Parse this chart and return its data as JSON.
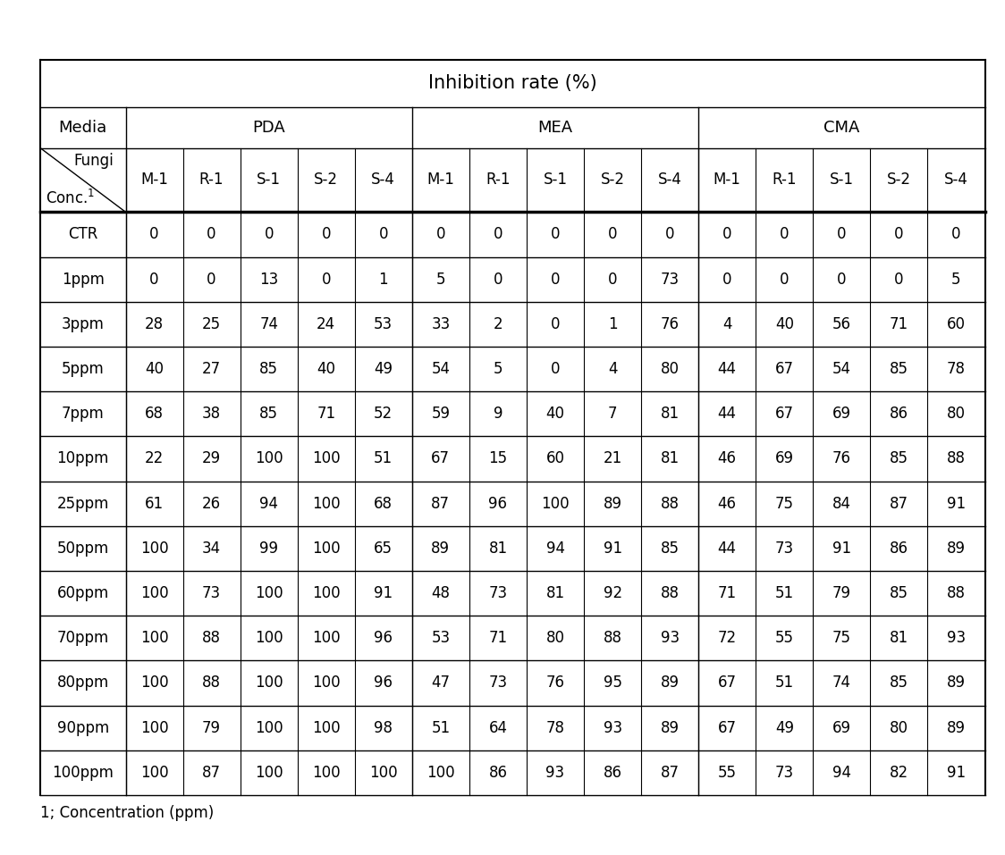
{
  "title": "Inhibition rate (%)",
  "fungi_labels": [
    "M-1",
    "R-1",
    "S-1",
    "S-2",
    "S-4",
    "M-1",
    "R-1",
    "S-1",
    "S-2",
    "S-4",
    "M-1",
    "R-1",
    "S-1",
    "S-2",
    "S-4"
  ],
  "row_labels": [
    "CTR",
    "1ppm",
    "3ppm",
    "5ppm",
    "7ppm",
    "10ppm",
    "25ppm",
    "50ppm",
    "60ppm",
    "70ppm",
    "80ppm",
    "90ppm",
    "100ppm"
  ],
  "data": [
    [
      0,
      0,
      0,
      0,
      0,
      0,
      0,
      0,
      0,
      0,
      0,
      0,
      0,
      0,
      0
    ],
    [
      0,
      0,
      13,
      0,
      1,
      5,
      0,
      0,
      0,
      73,
      0,
      0,
      0,
      0,
      5
    ],
    [
      28,
      25,
      74,
      24,
      53,
      33,
      2,
      0,
      1,
      76,
      4,
      40,
      56,
      71,
      60
    ],
    [
      40,
      27,
      85,
      40,
      49,
      54,
      5,
      0,
      4,
      80,
      44,
      67,
      54,
      85,
      78
    ],
    [
      68,
      38,
      85,
      71,
      52,
      59,
      9,
      40,
      7,
      81,
      44,
      67,
      69,
      86,
      80
    ],
    [
      22,
      29,
      100,
      100,
      51,
      67,
      15,
      60,
      21,
      81,
      46,
      69,
      76,
      85,
      88
    ],
    [
      61,
      26,
      94,
      100,
      68,
      87,
      96,
      100,
      89,
      88,
      46,
      75,
      84,
      87,
      91
    ],
    [
      100,
      34,
      99,
      100,
      65,
      89,
      81,
      94,
      91,
      85,
      44,
      73,
      91,
      86,
      89
    ],
    [
      100,
      73,
      100,
      100,
      91,
      48,
      73,
      81,
      92,
      88,
      71,
      51,
      79,
      85,
      88
    ],
    [
      100,
      88,
      100,
      100,
      96,
      53,
      71,
      80,
      88,
      93,
      72,
      55,
      75,
      81,
      93
    ],
    [
      100,
      88,
      100,
      100,
      96,
      47,
      73,
      76,
      95,
      89,
      67,
      51,
      74,
      85,
      89
    ],
    [
      100,
      79,
      100,
      100,
      98,
      51,
      64,
      78,
      93,
      89,
      67,
      49,
      69,
      80,
      89
    ],
    [
      100,
      87,
      100,
      100,
      100,
      100,
      86,
      93,
      86,
      87,
      55,
      73,
      94,
      82,
      91
    ]
  ],
  "footnote": "1; Concentration (ppm)",
  "background_color": "#ffffff",
  "text_color": "#000000",
  "title_fontsize": 15,
  "header_fontsize": 13,
  "cell_fontsize": 12,
  "footnote_fontsize": 12
}
